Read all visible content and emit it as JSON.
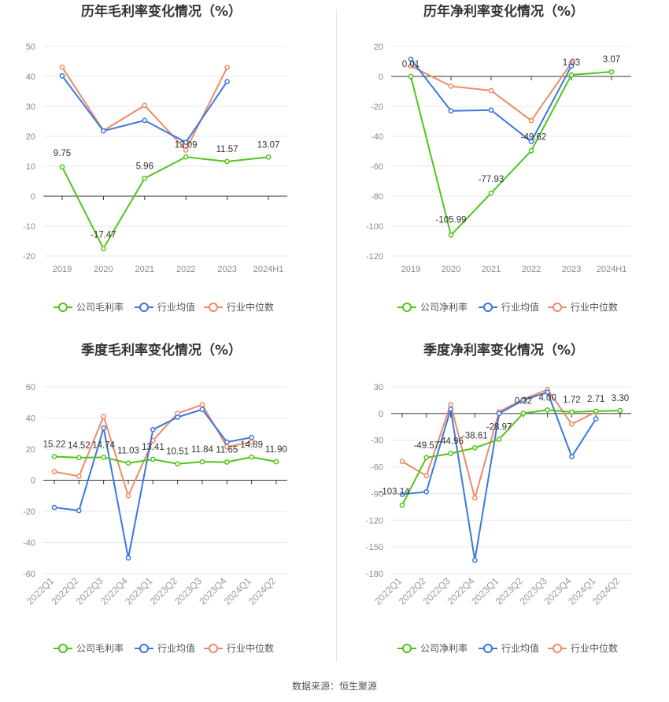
{
  "source": "数据来源：恒生聚源",
  "colors": {
    "company": "#52c41a",
    "avg": "#3a78e0",
    "median": "#f08a65",
    "grid": "#e8e8e8",
    "axis": "#333333"
  },
  "chart_data": [
    {
      "id": "c1",
      "type": "line",
      "title": "历年毛利率变化情况（%）",
      "categories": [
        "2019",
        "2020",
        "2021",
        "2022",
        "2023",
        "2024H1"
      ],
      "ylim": [
        -20,
        50
      ],
      "yticks": [
        50,
        40,
        30,
        20,
        10,
        0,
        -10,
        -20
      ],
      "rotate_x": false,
      "legend": [
        "公司毛利率",
        "行业均值",
        "行业中位数"
      ],
      "series": [
        {
          "name": "公司毛利率",
          "key": "company",
          "values": [
            9.75,
            -17.47,
            5.96,
            13.09,
            11.57,
            13.07
          ],
          "labels": [
            "9.75",
            "-17.47",
            "5.96",
            "13.09",
            "11.57",
            "13.07"
          ]
        },
        {
          "name": "行业均值",
          "key": "avg",
          "values": [
            40.2,
            21.8,
            25.3,
            18.0,
            38.3,
            null
          ]
        },
        {
          "name": "行业中位数",
          "key": "median",
          "values": [
            43.1,
            21.9,
            30.3,
            15.4,
            43.0,
            null
          ]
        }
      ]
    },
    {
      "id": "c2",
      "type": "line",
      "title": "历年净利率变化情况（%）",
      "categories": [
        "2019",
        "2020",
        "2021",
        "2022",
        "2023",
        "2024H1"
      ],
      "ylim": [
        -120,
        20
      ],
      "yticks": [
        20,
        0,
        -20,
        -40,
        -60,
        -80,
        -100,
        -120
      ],
      "rotate_x": false,
      "legend": [
        "公司净利率",
        "行业均值",
        "行业中位数"
      ],
      "series": [
        {
          "name": "公司净利率",
          "key": "company",
          "values": [
            0.01,
            -105.99,
            -77.93,
            -49.62,
            1.03,
            3.07
          ],
          "labels": [
            "0.01",
            "-105.99",
            "-77.93",
            "-49.62",
            "1.03",
            "3.07"
          ]
        },
        {
          "name": "行业均值",
          "key": "avg",
          "values": [
            11.5,
            -23.0,
            -22.5,
            -43.5,
            7.0,
            null
          ]
        },
        {
          "name": "行业中位数",
          "key": "median",
          "values": [
            7.0,
            -6.5,
            -9.5,
            -29.5,
            9.0,
            null
          ]
        }
      ]
    },
    {
      "id": "c3",
      "type": "line",
      "title": "季度毛利率变化情况（%）",
      "categories": [
        "2022Q1",
        "2022Q2",
        "2022Q3",
        "2022Q4",
        "2023Q1",
        "2023Q2",
        "2023Q3",
        "2023Q4",
        "2024Q1",
        "2024Q2"
      ],
      "ylim": [
        -60,
        60
      ],
      "yticks": [
        60,
        40,
        20,
        0,
        -20,
        -40,
        -60
      ],
      "rotate_x": true,
      "legend": [
        "公司毛利率",
        "行业均值",
        "行业中位数"
      ],
      "series": [
        {
          "name": "公司毛利率",
          "key": "company",
          "values": [
            15.22,
            14.52,
            14.74,
            11.03,
            13.41,
            10.51,
            11.84,
            11.65,
            14.89,
            11.9
          ],
          "labels": [
            "15.22",
            "14.52",
            "14.74",
            "11.03",
            "13.41",
            "10.51",
            "11.84",
            "11.65",
            "14.89",
            "11.90"
          ]
        },
        {
          "name": "行业均值",
          "key": "avg",
          "values": [
            -17.5,
            -19.5,
            33.5,
            -50.0,
            32.5,
            40.5,
            45.5,
            24.5,
            27.5,
            null
          ]
        },
        {
          "name": "行业中位数",
          "key": "median",
          "values": [
            5.5,
            2.5,
            41.0,
            -10.0,
            25.5,
            43.0,
            48.5,
            21.5,
            24.5,
            null
          ]
        }
      ]
    },
    {
      "id": "c4",
      "type": "line",
      "title": "季度净利率变化情况（%）",
      "categories": [
        "2022Q1",
        "2022Q2",
        "2022Q3",
        "2022Q4",
        "2023Q1",
        "2023Q2",
        "2023Q3",
        "2023Q4",
        "2024Q1",
        "2024Q2"
      ],
      "ylim": [
        -180,
        30
      ],
      "yticks": [
        30,
        0,
        -30,
        -60,
        -90,
        -120,
        -150,
        -180
      ],
      "rotate_x": true,
      "legend": [
        "公司净利率",
        "行业均值",
        "行业中位数"
      ],
      "series": [
        {
          "name": "公司净利率",
          "key": "company",
          "values": [
            -103.14,
            -49.57,
            -44.96,
            -38.61,
            -28.97,
            0.32,
            4.0,
            1.72,
            2.71,
            3.3
          ],
          "labels": [
            "-103.14",
            "-49.57",
            "-44.96",
            "-38.61",
            "-28.97",
            "0.32",
            "4.00",
            "1.72",
            "2.71",
            "3.30"
          ]
        },
        {
          "name": "行业均值",
          "key": "avg",
          "values": [
            -91.0,
            -88.0,
            5.0,
            -165.0,
            0.0,
            15.0,
            24.0,
            -48.5,
            -6.0,
            null
          ]
        },
        {
          "name": "行业中位数",
          "key": "median",
          "values": [
            -54.0,
            -70.0,
            10.0,
            -95.0,
            2.0,
            16.0,
            27.0,
            -12.0,
            2.0,
            null
          ]
        }
      ]
    }
  ]
}
